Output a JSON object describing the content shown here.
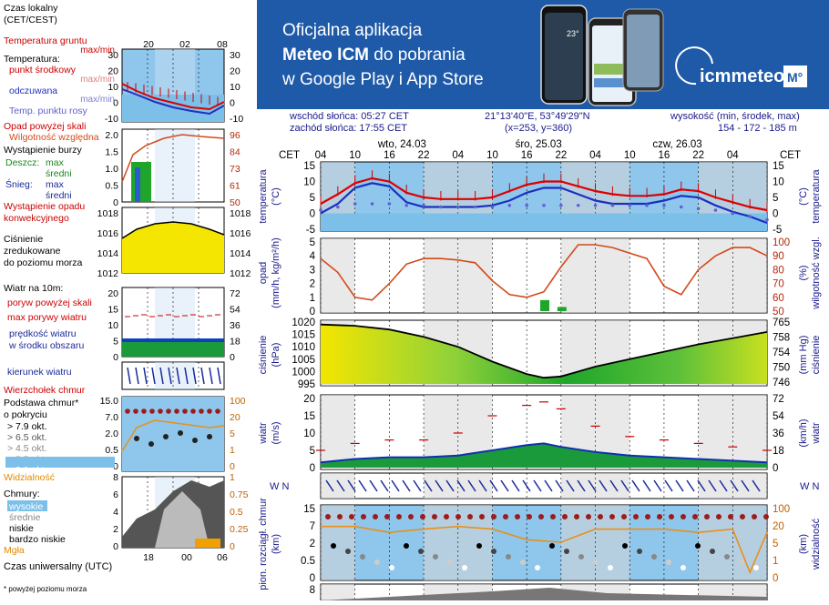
{
  "banner": {
    "line1": "Oficjalna aplikacja",
    "line2_bold": "Meteo ICM",
    "line2_rest": " do pobrania",
    "line3": "w Google Play i App Store",
    "brand": "icmmeteo",
    "brand_badge": "M°",
    "phone_temp": "23°",
    "colors": {
      "background": "#1f5aa8",
      "brand_text": "#ffffff"
    }
  },
  "meta": {
    "sunrise": "wschód słońca: 05:27 CET",
    "sunset": "zachód słońca: 17:55 CET",
    "coords": "21°13'40\"E, 53°49'29\"N",
    "grid": "(x=253,  y=360)",
    "height_label": "wysokość (min, środek, max)",
    "height_values": "154 - 172 - 185 m"
  },
  "legend": {
    "time_label": "Czas lokalny\n(CET/CEST)",
    "time_ticks": [
      "20",
      "02",
      "08"
    ],
    "temp_ground": "Temperatura gruntu",
    "temp_ground_sub": "max/min",
    "temp_title": "Temperatura:",
    "temp_mid": "punkt środkowy",
    "temp_maxmin": "max/min",
    "temp_feel": "odczuwana",
    "temp_feel_sub": "max/min",
    "dew": "Temp. punktu rosy",
    "rain_above": "Opad powyżej skali",
    "humidity": "Wilgotność względna",
    "storm": "Wystąpienie burzy",
    "rain": "Deszcz:",
    "snow": "Śnieg:",
    "max": "max",
    "mean": "średni",
    "precip_occ": "Wystąpienie opadu\nkonwekcyjnego",
    "pressure": "Ciśnienie\nzredukowane\ndo poziomu morza",
    "wind_title": "Wiatr na 10m:",
    "gusts_above": "poryw powyżej skali",
    "gusts_max": "max porywy wiatru",
    "wind_speed": "prędkość wiatru\nw środku obszaru",
    "wind_dir": "kierunek wiatru",
    "cloud_top": "Wierzchołek chmur",
    "cloud_base": "Podstawa chmur*\no pokryciu",
    "okt": [
      "> 7.9 okt.",
      "> 6.5 okt.",
      "> 4.5 okt.",
      "> 2.5 okt.",
      "> 0.1 okt."
    ],
    "visibility": "Widzialność",
    "clouds": "Chmury:",
    "cloud_levels": [
      "wysokie",
      "średnie",
      "niskie",
      "bardzo niskie"
    ],
    "fog": "Mgła",
    "utc": "Czas uniwersalny (UTC)",
    "utc_ticks": [
      "18",
      "00",
      "06"
    ],
    "footnote": "* powyżej poziomu morza",
    "axes": {
      "temp_ticks": [
        "30",
        "20",
        "10",
        "0",
        "-10"
      ],
      "rain_ticks": [
        "2.0",
        "1.5",
        "1.0",
        "0.5",
        "0"
      ],
      "hum_ticks": [
        "96",
        "84",
        "73",
        "61",
        "50"
      ],
      "pres_ticks": [
        "1018",
        "1016",
        "1014",
        "1012"
      ],
      "wind_ticks": [
        "20",
        "15",
        "10",
        "5",
        "0"
      ],
      "wind_kmh_ticks": [
        "72",
        "54",
        "36",
        "18",
        "0"
      ],
      "cb_ticks": [
        "15.0",
        "7.0",
        "2.0",
        "0.5",
        "0"
      ],
      "cb_right_ticks": [
        "100",
        "20",
        "5",
        "1",
        "0"
      ],
      "cl_ticks": [
        "8",
        "6",
        "4",
        "2",
        "0"
      ],
      "cl_right_ticks": [
        "1",
        "0.75",
        "0.5",
        "0.25",
        "0"
      ]
    }
  },
  "main": {
    "cet": "CET",
    "days": [
      "wto, 24.03",
      "śro, 25.03",
      "czw, 26.03"
    ],
    "hour_ticks": [
      "04",
      "10",
      "16",
      "22",
      "04",
      "10",
      "16",
      "22",
      "04",
      "10",
      "16",
      "22",
      "04"
    ],
    "labels": {
      "temperature": "temperatura",
      "temp_unit": "(°C)",
      "precip": "opad",
      "precip_unit": "(mm/h, kg/m²/h)",
      "humidity_unit": "(%)",
      "humidity": "wilgotność wzgl.",
      "pressure": "ciśnienie",
      "pressure_unit": "(hPa)",
      "pressure_unit_r": "(mm Hg)",
      "wind": "wiatr",
      "wind_unit": "(m/s)",
      "wind_unit_r": "(km/h)",
      "cloud_left": "pion. rozciągł. chmur",
      "cloud_left_unit": "(km)",
      "vis": "widzialność",
      "vis_unit": "(km)"
    }
  },
  "chart_data": [
    {
      "type": "line",
      "title": "temperatura",
      "ylabel": "(°C)",
      "ylim": [
        -5,
        15
      ],
      "yticks": [
        15,
        10,
        5,
        0,
        -5
      ],
      "x": [
        0,
        3,
        6,
        9,
        12,
        15,
        18,
        21,
        24,
        27,
        30,
        33,
        36,
        39,
        42,
        45,
        48,
        51,
        54,
        57,
        60,
        63,
        66,
        69,
        72,
        75,
        78
      ],
      "series": [
        {
          "name": "punkt środkowy",
          "values": [
            3,
            6,
            9.5,
            11,
            10,
            6.5,
            5,
            4.5,
            4.5,
            4.5,
            5,
            7,
            9,
            10,
            10,
            8.5,
            7,
            6,
            5.5,
            5.5,
            6,
            7.5,
            7,
            5,
            3.5,
            2,
            1
          ]
        },
        {
          "name": "odczuwana",
          "values": [
            0,
            3,
            8,
            9.5,
            8.5,
            3.5,
            2,
            2,
            2,
            2,
            2.5,
            4,
            6.5,
            8,
            8,
            6,
            4,
            3,
            3,
            3,
            4,
            5.5,
            5,
            2.5,
            0.5,
            -1,
            -3
          ]
        },
        {
          "name": "Temp. punktu rosy",
          "values": [
            1,
            2,
            3,
            3,
            3,
            2.5,
            2.5,
            2,
            2,
            2,
            2,
            2.5,
            2.5,
            2.5,
            2.5,
            2.5,
            2.5,
            2.5,
            2.5,
            2.5,
            2.5,
            2,
            1.5,
            1,
            0,
            -1,
            -2
          ]
        },
        {
          "name": "Temperatura gruntu",
          "values": [
            -2,
            -2,
            -2,
            -2,
            -2,
            -2,
            -2,
            -2,
            -2,
            -2,
            -2,
            -2,
            -2,
            -2,
            -2,
            -2,
            -2,
            -2,
            -2,
            -2,
            -2,
            -2,
            -2,
            -2,
            -2,
            -2,
            -2
          ]
        }
      ]
    },
    {
      "type": "line",
      "title": "opad / wilgotność wzgl.",
      "ylabel": "(mm/h, kg/m²/h)",
      "ylim": [
        0,
        5
      ],
      "yticks": [
        5,
        4,
        3,
        2,
        1,
        0
      ],
      "y2label": "(%)",
      "y2lim": [
        50,
        100
      ],
      "y2ticks": [
        100,
        90,
        80,
        70,
        60,
        50
      ],
      "x": [
        0,
        3,
        6,
        9,
        12,
        15,
        18,
        21,
        24,
        27,
        30,
        33,
        36,
        39,
        42,
        45,
        48,
        51,
        54,
        57,
        60,
        63,
        66,
        69,
        72,
        75,
        78
      ],
      "series": [
        {
          "name": "wilgotność",
          "values": [
            88,
            78,
            60,
            58,
            70,
            84,
            88,
            88,
            87,
            85,
            72,
            62,
            60,
            64,
            82,
            98,
            98,
            96,
            92,
            88,
            68,
            62,
            80,
            90,
            96,
            96,
            90
          ]
        },
        {
          "name": "opad",
          "values": [
            0,
            0,
            0,
            0,
            0,
            0,
            0,
            0,
            0,
            0,
            0,
            0,
            0,
            0.8,
            0.3,
            0,
            0,
            0,
            0,
            0,
            0,
            0,
            0,
            0,
            0,
            0,
            0
          ]
        }
      ]
    },
    {
      "type": "area",
      "title": "ciśnienie",
      "ylabel": "(hPa)",
      "ylim": [
        995,
        1020
      ],
      "yticks": [
        1020,
        1015,
        1010,
        1005,
        1000,
        995
      ],
      "y2label": "(mm Hg)",
      "y2ticks": [
        765,
        758,
        754,
        750,
        746
      ],
      "x": [
        0,
        6,
        12,
        18,
        24,
        30,
        36,
        39,
        42,
        48,
        54,
        60,
        66,
        72,
        78
      ],
      "values": [
        1019,
        1018.5,
        1017,
        1014,
        1010,
        1004,
        999,
        997.5,
        998,
        1002,
        1005,
        1008,
        1011,
        1013.5,
        1016
      ]
    },
    {
      "type": "line",
      "title": "wiatr",
      "ylabel": "(m/s)",
      "ylim": [
        0,
        20
      ],
      "yticks": [
        20,
        15,
        10,
        5,
        0
      ],
      "y2label": "(km/h)",
      "y2ticks": [
        72,
        54,
        36,
        18,
        0
      ],
      "x": [
        0,
        6,
        12,
        18,
        24,
        30,
        36,
        39,
        42,
        48,
        54,
        60,
        66,
        72,
        78
      ],
      "series": [
        {
          "name": "prędkość wiatru",
          "values": [
            1.5,
            2.5,
            3,
            3,
            3.5,
            5,
            6.5,
            7,
            6,
            4.5,
            3.5,
            3,
            2.5,
            2,
            1.5
          ]
        },
        {
          "name": "max porywy wiatru",
          "values": [
            5,
            7,
            8,
            8,
            10,
            15,
            18,
            19,
            17,
            12,
            9,
            8,
            7,
            6,
            5
          ]
        }
      ]
    },
    {
      "type": "line",
      "title": "widzialność",
      "ylabel": "(km)",
      "ylim": [
        0,
        15
      ],
      "yticks": [
        15.0,
        7.0,
        2.0,
        0.5,
        0
      ],
      "y2lim": [
        0,
        100
      ],
      "y2ticks": [
        100,
        20,
        5,
        1,
        0
      ],
      "x": [
        0,
        6,
        12,
        18,
        24,
        30,
        36,
        42,
        48,
        54,
        60,
        66,
        72,
        75,
        78
      ],
      "values": [
        30,
        30,
        20,
        25,
        30,
        25,
        12,
        10,
        25,
        25,
        25,
        20,
        25,
        0.5,
        20
      ]
    }
  ]
}
